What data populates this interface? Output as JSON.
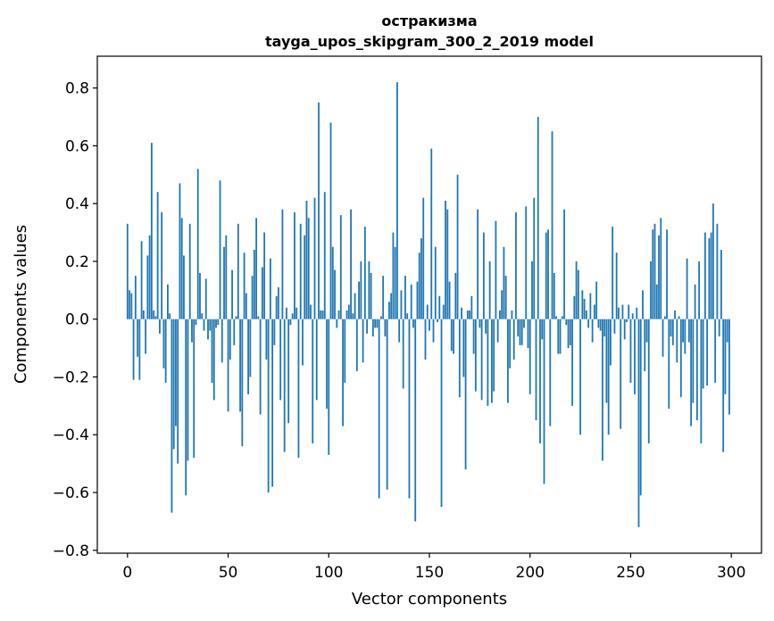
{
  "chart_data": {
    "type": "bar",
    "title": "остракизма",
    "subtitle": "tayga_upos_skipgram_300_2_2019 model",
    "xlabel": "Vector components",
    "ylabel": "Components values",
    "xlim": [
      -15,
      315
    ],
    "ylim": [
      -0.81,
      0.91
    ],
    "x_ticks": [
      0,
      50,
      100,
      150,
      200,
      250,
      300
    ],
    "x_tick_labels": [
      "0",
      "50",
      "100",
      "150",
      "200",
      "250",
      "300"
    ],
    "y_ticks": [
      -0.8,
      -0.6,
      -0.4,
      -0.2,
      0.0,
      0.2,
      0.4,
      0.6,
      0.8
    ],
    "y_tick_labels": [
      "−0.8",
      "−0.6",
      "−0.4",
      "−0.2",
      "0.0",
      "0.2",
      "0.4",
      "0.6",
      "0.8"
    ],
    "bar_color": "#1f77b4",
    "values": [
      0.33,
      0.1,
      0.09,
      -0.21,
      0.15,
      -0.13,
      -0.21,
      0.27,
      0.03,
      -0.12,
      0.22,
      0.29,
      0.61,
      0.03,
      0.01,
      0.44,
      -0.05,
      0.37,
      -0.17,
      -0.22,
      0.12,
      0.02,
      -0.67,
      -0.45,
      -0.37,
      -0.5,
      0.47,
      0.35,
      0.22,
      -0.61,
      -0.49,
      0.33,
      -0.08,
      -0.48,
      -0.02,
      0.52,
      0.16,
      0.02,
      -0.04,
      0.14,
      -0.07,
      -0.04,
      -0.22,
      -0.28,
      -0.03,
      -0.02,
      0.48,
      -0.15,
      0.25,
      0.29,
      -0.32,
      -0.14,
      0.17,
      -0.09,
      0.01,
      0.33,
      -0.32,
      -0.44,
      0.23,
      0.09,
      -0.26,
      -0.2,
      0.15,
      0.24,
      0.35,
      0.01,
      -0.33,
      0.18,
      0.3,
      -0.14,
      -0.6,
      0.21,
      -0.58,
      -0.09,
      0.08,
      0.11,
      -0.28,
      0.38,
      -0.46,
      0.04,
      -0.36,
      -0.02,
      0.02,
      0.37,
      0.04,
      -0.48,
      0.33,
      -0.16,
      0.29,
      0.41,
      0.35,
      0.05,
      -0.43,
      0.42,
      -0.28,
      0.75,
      0.03,
      0.03,
      0.44,
      -0.31,
      -0.47,
      0.68,
      0.25,
      0.17,
      -0.03,
      0.03,
      0.36,
      -0.37,
      -0.22,
      0.03,
      0.05,
      0.38,
      0.02,
      0.09,
      -0.18,
      0.13,
      0.2,
      -0.15,
      0.32,
      -0.05,
      0.2,
      0.16,
      -0.06,
      -0.03,
      -0.03,
      -0.62,
      0.01,
      0.15,
      -0.06,
      -0.59,
      0.06,
      0.09,
      0.3,
      0.25,
      0.82,
      -0.08,
      0.1,
      -0.24,
      0.15,
      0.02,
      -0.62,
      0.12,
      -0.03,
      -0.7,
      0.13,
      0.23,
      0.28,
      0.42,
      -0.14,
      0.05,
      -0.04,
      0.59,
      -0.08,
      0.25,
      -0.01,
      0.08,
      -0.65,
      0.05,
      0.41,
      0.38,
      0.13,
      -0.11,
      -0.12,
      0.16,
      0.5,
      -0.27,
      0.04,
      -0.2,
      -0.52,
      0.03,
      0.03,
      0.08,
      -0.12,
      -0.25,
      0.38,
      -0.03,
      -0.28,
      0.3,
      -0.05,
      -0.3,
      0.2,
      -0.29,
      -0.25,
      0.34,
      -0.08,
      0.03,
      0.1,
      0.25,
      0.15,
      -0.29,
      -0.17,
      0.03,
      -0.14,
      0.37,
      -0.06,
      -0.09,
      -0.09,
      -0.03,
      0.39,
      -0.1,
      -0.26,
      0.2,
      0.42,
      -0.35,
      0.7,
      -0.43,
      -0.07,
      -0.57,
      0.3,
      0.31,
      -0.37,
      0.65,
      0.16,
      0.01,
      -0.12,
      -0.12,
      0.01,
      0.38,
      -0.02,
      -0.1,
      -0.09,
      -0.3,
      0.08,
      0.2,
      0.17,
      -0.4,
      0.1,
      0.07,
      0.03,
      -0.03,
      0.09,
      -0.08,
      0.05,
      0.13,
      -0.03,
      -0.04,
      -0.49,
      -0.06,
      -0.29,
      -0.4,
      -0.16,
      0.32,
      -0.05,
      0.23,
      0.04,
      -0.38,
      0.05,
      -0.07,
      -0.01,
      0.05,
      -0.22,
      0.02,
      -0.26,
      0.04,
      -0.72,
      -0.61,
      0.1,
      -0.18,
      -0.08,
      -0.43,
      0.2,
      0.31,
      0.33,
      0.12,
      0.29,
      0.35,
      -0.13,
      0.01,
      0.31,
      -0.31,
      -0.06,
      -0.09,
      0.03,
      -0.15,
      0.01,
      -0.27,
      -0.08,
      -0.12,
      0.21,
      -0.08,
      -0.37,
      -0.29,
      0.12,
      -0.35,
      0.2,
      -0.43,
      -0.24,
      0.3,
      -0.23,
      0.28,
      0.3,
      0.4,
      -0.22,
      0.33,
      -0.06,
      0.24,
      -0.46,
      -0.26,
      -0.08,
      -0.33
    ]
  }
}
